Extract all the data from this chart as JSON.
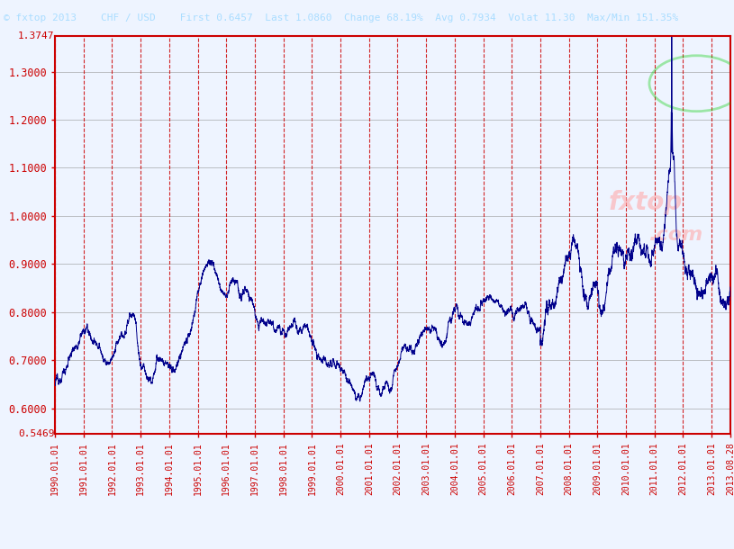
{
  "y_max_label": "1.3747",
  "y_min_label": "0.5469",
  "y_ticks": [
    1.3,
    1.2,
    1.1,
    1.0,
    0.9,
    0.8,
    0.7,
    0.6
  ],
  "ylim": [
    0.5469,
    1.3747
  ],
  "x_tick_labels": [
    "1990.01.01",
    "1991.01.01",
    "1992.01.01",
    "1993.01.01",
    "1994.01.01",
    "1995.01.01",
    "1996.01.01",
    "1997.01.01",
    "1998.01.01",
    "1999.01.01",
    "2000.01.01",
    "2001.01.01",
    "2002.01.01",
    "2003.01.01",
    "2004.01.01",
    "2005.01.01",
    "2006.01.01",
    "2007.01.01",
    "2008.01.01",
    "2009.01.01",
    "2010.01.01",
    "2011.01.01",
    "2012.01.01",
    "2013.01.01",
    "2013.08.28"
  ],
  "line_color": "#00008B",
  "axis_color": "#CC0000",
  "tick_label_color": "#CC0000",
  "bg_color": "#EEF4FF",
  "grid_color_v": "#CC0000",
  "grid_color_h": "#888888",
  "header_bg": "#000000",
  "header_text_color": "#AADDFF",
  "header_text": "fxtop 2013    CHF / USD    First 0.6457  Last 1.0860  Change 68.19%  Avg 0.7934  Volat 11.30  Max/Min 151.35%",
  "watermark_text": "fxtop",
  "watermark_text2": ".com",
  "watermark_color": "#FFAAAA",
  "watermark_circle_color": "#00CC00"
}
